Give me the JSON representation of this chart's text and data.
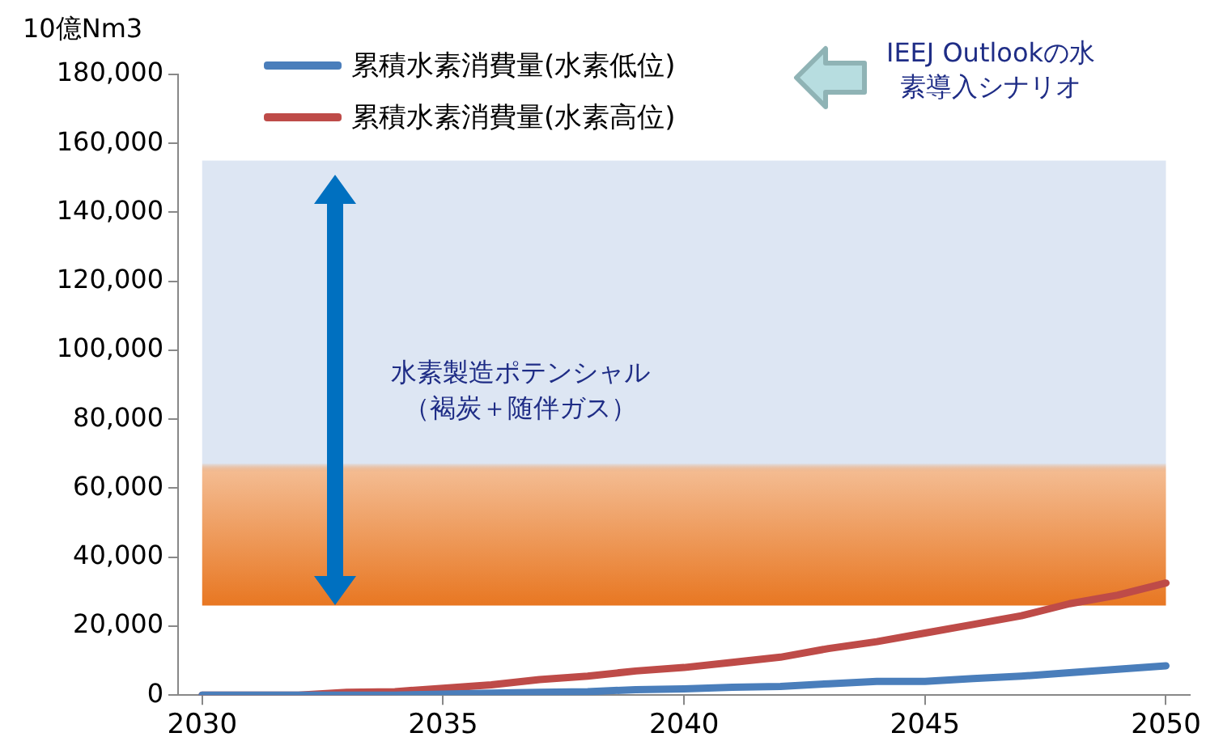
{
  "chart_data": {
    "type": "line",
    "ylabel": "10億Nm3",
    "x": [
      2030,
      2031,
      2032,
      2033,
      2034,
      2035,
      2036,
      2037,
      2038,
      2039,
      2040,
      2041,
      2042,
      2043,
      2044,
      2045,
      2046,
      2047,
      2048,
      2049,
      2050
    ],
    "series": [
      {
        "name": "累積水素消費量(水素低位)",
        "color": "#4a7ebb",
        "values": [
          0,
          0,
          0,
          0,
          0,
          300,
          600,
          800,
          1000,
          1600,
          1800,
          2300,
          2500,
          3300,
          4000,
          4000,
          4800,
          5500,
          6500,
          7500,
          8500
        ]
      },
      {
        "name": "累積水素消費量(水素高位)",
        "color": "#be4b48",
        "values": [
          0,
          0,
          0,
          800,
          1000,
          2000,
          3000,
          4500,
          5500,
          7000,
          8000,
          9500,
          11000,
          13500,
          15500,
          18000,
          20500,
          23000,
          26500,
          29000,
          32500
        ]
      }
    ],
    "xlim": [
      2029.5,
      2050.5
    ],
    "xticks": [
      2030,
      2035,
      2040,
      2045,
      2050
    ],
    "ylim": [
      0,
      180000
    ],
    "yticks": [
      0,
      {
        "value": 20000,
        "label": "20,000"
      },
      {
        "value": 40000,
        "label": "40,000"
      },
      {
        "value": 60000,
        "label": "60,000"
      },
      {
        "value": 80000,
        "label": "80,000"
      },
      {
        "value": 100000,
        "label": "100,000"
      },
      {
        "value": 120000,
        "label": "120,000"
      },
      {
        "value": 140000,
        "label": "140,000"
      },
      {
        "value": 160000,
        "label": "160,000"
      },
      {
        "value": 180000,
        "label": "180,000"
      }
    ],
    "bands": [
      {
        "axis": "y",
        "from": 26000,
        "to": 155000,
        "label": "水素製造ポテンシャル（褐炭＋随伴ガス）",
        "color": "#e87722"
      }
    ],
    "annotations": [
      "IEEJ Outlookの水素導入シナリオ"
    ],
    "legend": "top",
    "grid": false,
    "marker": "none",
    "line_style": "solid"
  }
}
